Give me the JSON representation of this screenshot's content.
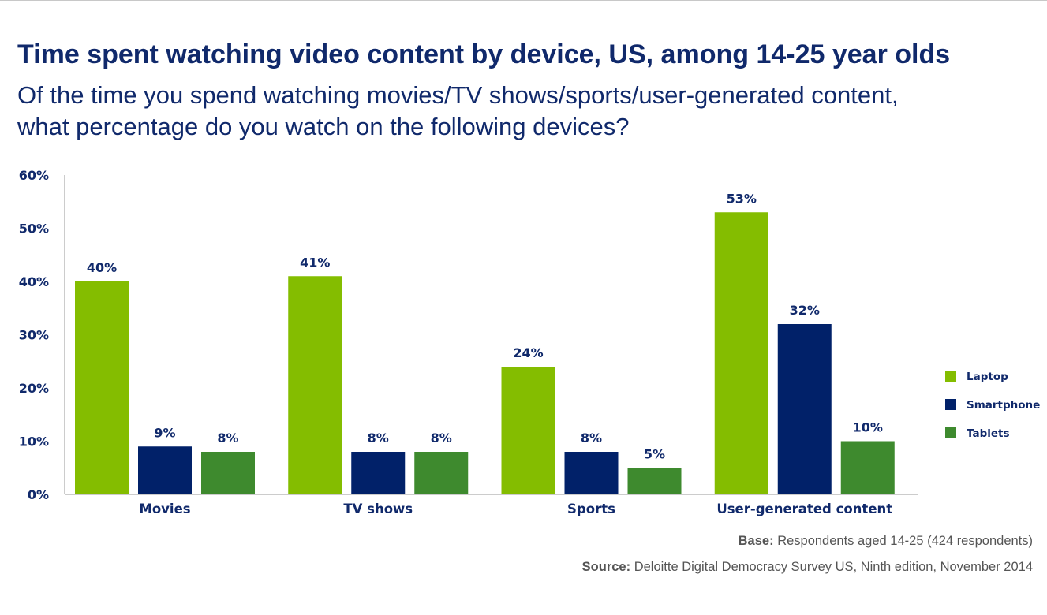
{
  "title": "Time spent watching video content by device, US, among 14-25 year olds",
  "subtitle_line1": "Of the time you spend watching movies/TV shows/sports/user-generated content,",
  "subtitle_line2": "what percentage do you watch on the following devices?",
  "notes": {
    "base_label": "Base:",
    "base_text": "Respondents aged 14-25 (424 respondents)",
    "source_label": "Source:",
    "source_text": "Deloitte Digital Democracy Survey US, Ninth edition, November 2014"
  },
  "chart_data": {
    "type": "bar",
    "categories": [
      "Movies",
      "TV shows",
      "Sports",
      "User-generated content"
    ],
    "series": [
      {
        "name": "Laptop",
        "values": [
          40,
          41,
          24,
          53
        ],
        "labels": [
          "40%",
          "41%",
          "24%",
          "53%"
        ],
        "color": "#84bd00"
      },
      {
        "name": "Smartphone",
        "values": [
          9,
          8,
          8,
          32
        ],
        "labels": [
          "9%",
          "8%",
          "8%",
          "32%"
        ],
        "color": "#012169"
      },
      {
        "name": "Tablets",
        "values": [
          8,
          8,
          5,
          10
        ],
        "labels": [
          "8%",
          "8%",
          "5%",
          "10%"
        ],
        "color": "#3e8a2e"
      }
    ],
    "yticks": [
      "0%",
      "10%",
      "20%",
      "30%",
      "40%",
      "50%",
      "60%"
    ],
    "ylim": [
      0,
      60
    ],
    "grid": false,
    "legend_position": "right",
    "xlabel": "",
    "ylabel": ""
  }
}
